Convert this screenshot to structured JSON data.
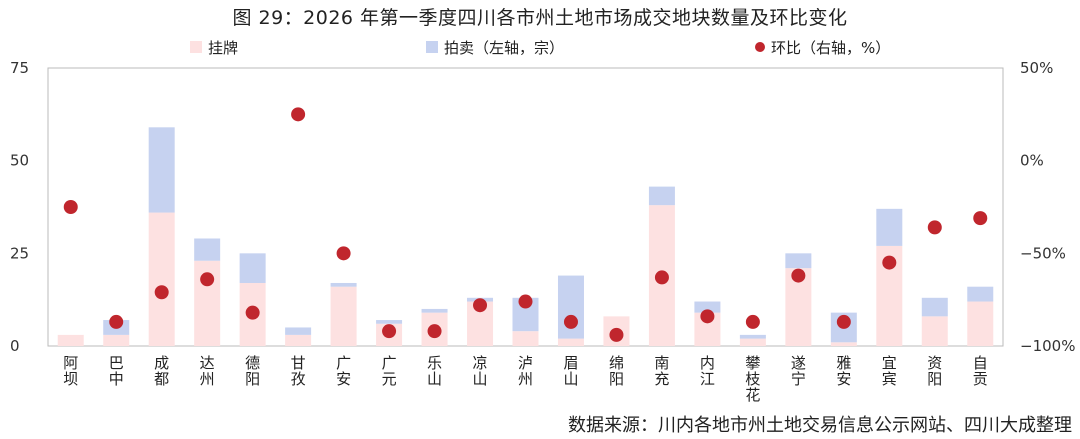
{
  "title": "图 29：2026 年第一季度四川各市州土地市场成交地块数量及环比变化",
  "source": "数据来源：川内各地市州土地交易信息公示网站、四川大成整理",
  "colors": {
    "listing": "#fde1e1",
    "auction": "#c6d2f0",
    "mom": "#c0262d",
    "axis": "#bbbbbb"
  },
  "chart_data": {
    "type": "bar",
    "stacked": true,
    "categories": [
      "阿坝",
      "巴中",
      "成都",
      "达州",
      "德阳",
      "甘孜",
      "广安",
      "广元",
      "乐山",
      "凉山",
      "泸州",
      "眉山",
      "绵阳",
      "南充",
      "内江",
      "攀枝花",
      "遂宁",
      "雅安",
      "宜宾",
      "资阳",
      "自贡"
    ],
    "series": [
      {
        "name": "挂牌",
        "axis": "left",
        "values": [
          3,
          3,
          36,
          23,
          17,
          3,
          16,
          6,
          9,
          12,
          4,
          2,
          8,
          38,
          9,
          2,
          21,
          1,
          27,
          8,
          12
        ]
      },
      {
        "name": "拍卖（左轴，宗）",
        "axis": "left",
        "values": [
          0,
          4,
          23,
          6,
          8,
          2,
          1,
          1,
          1,
          1,
          9,
          17,
          0,
          5,
          3,
          1,
          4,
          8,
          10,
          5,
          4
        ]
      },
      {
        "name": "环比（右轴，%）",
        "axis": "right",
        "type": "scatter",
        "values": [
          -25,
          -87,
          -71,
          -64,
          -82,
          25,
          -50,
          -92,
          -92,
          -78,
          -76,
          -87,
          -94,
          -63,
          -84,
          -87,
          -62,
          -87,
          -55,
          -36,
          -31
        ]
      }
    ],
    "y_left": {
      "ylim": [
        0,
        75
      ],
      "ticks": [
        0,
        25,
        50,
        75
      ]
    },
    "y_right": {
      "ylim": [
        -100,
        50
      ],
      "ticks": [
        "-100%",
        "-50%",
        "0%",
        "50%"
      ]
    },
    "legend_position": "top",
    "grid": false
  }
}
